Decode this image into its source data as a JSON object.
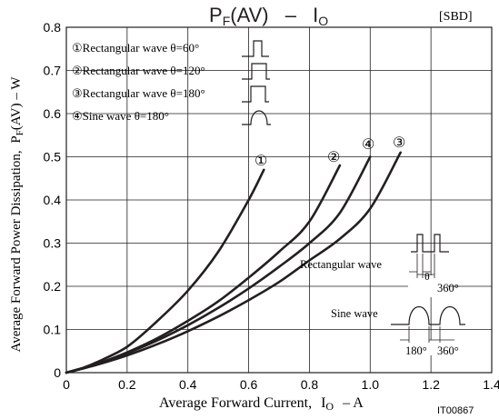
{
  "chart_data": {
    "type": "line",
    "title": "PF(AV) - IO",
    "title_parts": {
      "p": "P",
      "p_sub": "F",
      "p_rest": "(AV)",
      "dash": "–",
      "i": "I",
      "i_sub": "O"
    },
    "tag": "[SBD]",
    "figure_id": "IT00867",
    "xlabel": "Average Forward Current, IO – A",
    "xlabel_parts": {
      "text": "Average Forward Current,",
      "i": "I",
      "i_sub": "O",
      "rest": "– A"
    },
    "ylabel": "Average Forward Power Dissipation, PF(AV) – W",
    "ylabel_parts": {
      "text": "Average Forward Power Dissipation,",
      "p": "P",
      "p_sub": "F",
      "rest": "(AV) – W"
    },
    "xlim": [
      0,
      1.4
    ],
    "ylim": [
      0,
      0.8
    ],
    "xticks": [
      "0",
      "0.2",
      "0.4",
      "0.6",
      "0.8",
      "1.0",
      "1.2",
      "1.4"
    ],
    "yticks": [
      "0",
      "0.1",
      "0.2",
      "0.3",
      "0.4",
      "0.5",
      "0.6",
      "0.7",
      "0.8"
    ],
    "grid": true,
    "legend_position": "top-left",
    "series": [
      {
        "name": "Rectangular wave θ=60°",
        "marker": "①",
        "legend": "①Rectangular wave θ=60°",
        "duty": 60,
        "x": [
          0,
          0.05,
          0.1,
          0.2,
          0.3,
          0.4,
          0.5,
          0.6,
          0.65
        ],
        "y": [
          0,
          0.01,
          0.024,
          0.06,
          0.12,
          0.19,
          0.28,
          0.4,
          0.47
        ]
      },
      {
        "name": "Rectangular wave θ=120°",
        "marker": "②",
        "legend": "②Rectangular wave θ=120°",
        "duty": 120,
        "x": [
          0,
          0.05,
          0.1,
          0.2,
          0.3,
          0.4,
          0.5,
          0.6,
          0.7,
          0.8,
          0.9
        ],
        "y": [
          0,
          0.009,
          0.02,
          0.047,
          0.08,
          0.12,
          0.165,
          0.22,
          0.28,
          0.35,
          0.48
        ]
      },
      {
        "name": "Rectangular wave θ=180°",
        "marker": "③",
        "legend": "③Rectangular wave θ=180°",
        "duty": 180,
        "x": [
          0,
          0.1,
          0.2,
          0.3,
          0.4,
          0.5,
          0.6,
          0.7,
          0.8,
          0.9,
          1.0,
          1.1
        ],
        "y": [
          0,
          0.018,
          0.04,
          0.066,
          0.096,
          0.13,
          0.168,
          0.21,
          0.26,
          0.31,
          0.38,
          0.51
        ]
      },
      {
        "name": "Sine wave θ=180°",
        "marker": "④",
        "legend": "④Sine wave θ=180°",
        "duty": 0,
        "x": [
          0,
          0.1,
          0.2,
          0.3,
          0.4,
          0.5,
          0.6,
          0.7,
          0.8,
          0.9,
          1.0
        ],
        "y": [
          0,
          0.02,
          0.045,
          0.075,
          0.11,
          0.15,
          0.195,
          0.245,
          0.3,
          0.37,
          0.5
        ]
      }
    ],
    "annotations": {
      "rect_wave_label": "Rectangular wave",
      "theta_label": "θ",
      "rect_period_label": "360°",
      "sine_wave_label": "Sine wave",
      "sine_half_label": "180°",
      "sine_period_label": "360°"
    }
  }
}
